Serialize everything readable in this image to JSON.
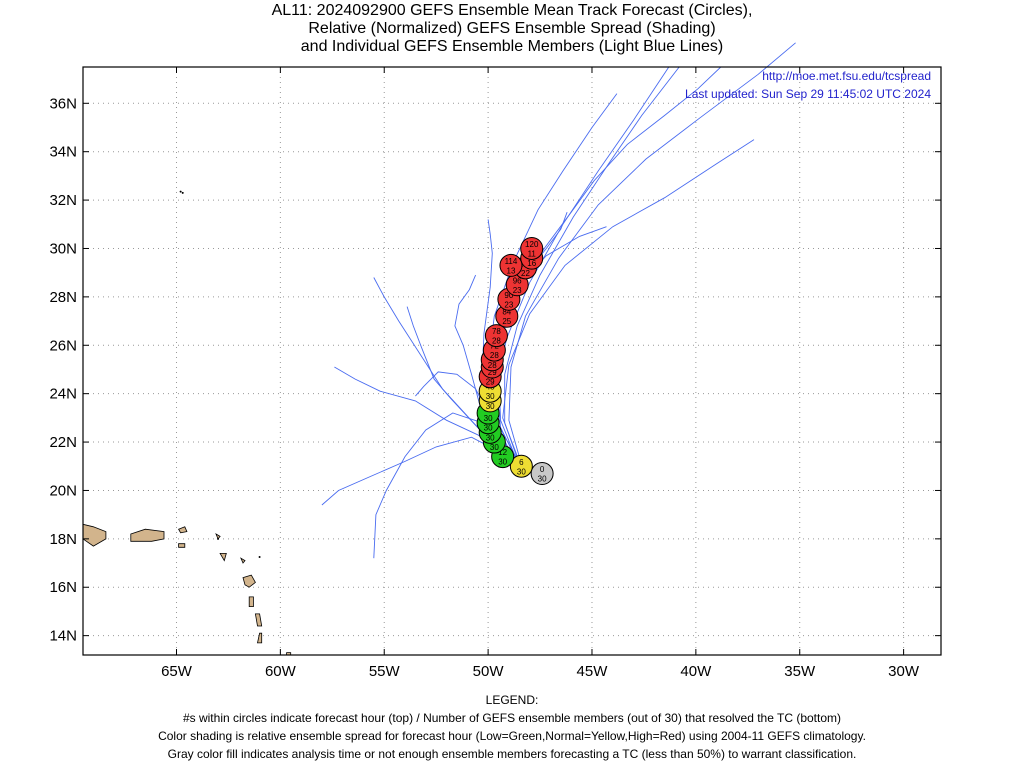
{
  "title": {
    "line1": "AL11: 2024092900 GEFS Ensemble Mean Track Forecast (Circles),",
    "line2": "Relative (Normalized) GEFS Ensemble Spread (Shading)",
    "line3": "and Individual GEFS Ensemble Members (Light Blue Lines)"
  },
  "credits": {
    "url": "http://moe.met.fsu.edu/tcspread",
    "updated": "Last updated: Sun Sep 29 11:45:02 UTC 2024"
  },
  "axes": {
    "lon_ticks": [
      "65W",
      "60W",
      "55W",
      "50W",
      "45W",
      "40W",
      "35W",
      "30W"
    ],
    "lat_ticks": [
      "14N",
      "16N",
      "18N",
      "20N",
      "22N",
      "24N",
      "26N",
      "28N",
      "30N",
      "32N",
      "34N",
      "36N"
    ]
  },
  "legend": {
    "heading": "LEGEND:",
    "line1": "#s within circles indicate forecast hour (top) / Number of GEFS ensemble members (out of 30) that resolved the TC (bottom)",
    "line2": "Color shading is relative ensemble spread for forecast hour (Low=Green,Normal=Yellow,High=Red) using 2004-11 GEFS climatology.",
    "line3": "Gray color fill indicates analysis time or not enough ensemble members forecasting a TC (less than 50%) to warrant classification."
  },
  "colors": {
    "gray": "#c8c8c8",
    "green": "#22cc22",
    "yellow": "#eedd33",
    "red": "#ee3333",
    "member_line": "#4a6cf0",
    "land": "#d2b48c",
    "url_text": "#2222cc"
  },
  "chart_data": {
    "type": "map-track",
    "lon_range": [
      -69.5,
      -28.2
    ],
    "lat_range": [
      13.2,
      37.5
    ],
    "grid": true,
    "mean_track": [
      {
        "hour": "0",
        "members": "30",
        "lon": -47.4,
        "lat": 20.7,
        "spread": "gray"
      },
      {
        "hour": "6",
        "members": "30",
        "lon": -48.4,
        "lat": 21.0,
        "spread": "yellow"
      },
      {
        "hour": "12",
        "members": "30",
        "lon": -49.3,
        "lat": 21.4,
        "spread": "green"
      },
      {
        "hour": "18",
        "members": "30",
        "lon": -49.7,
        "lat": 22.0,
        "spread": "green"
      },
      {
        "hour": "24",
        "members": "30",
        "lon": -49.9,
        "lat": 22.4,
        "spread": "green"
      },
      {
        "hour": "30",
        "members": "30",
        "lon": -50.0,
        "lat": 22.8,
        "spread": "green"
      },
      {
        "hour": "36",
        "members": "30",
        "lon": -50.0,
        "lat": 23.2,
        "spread": "green"
      },
      {
        "hour": "42",
        "members": "30",
        "lon": -49.9,
        "lat": 23.7,
        "spread": "yellow"
      },
      {
        "hour": "48",
        "members": "30",
        "lon": -49.9,
        "lat": 24.1,
        "spread": "yellow"
      },
      {
        "hour": "54",
        "members": "29",
        "lon": -49.9,
        "lat": 24.7,
        "spread": "red"
      },
      {
        "hour": "60",
        "members": "29",
        "lon": -49.8,
        "lat": 25.1,
        "spread": "red"
      },
      {
        "hour": "66",
        "members": "28",
        "lon": -49.8,
        "lat": 25.4,
        "spread": "red"
      },
      {
        "hour": "72",
        "members": "28",
        "lon": -49.7,
        "lat": 25.8,
        "spread": "red"
      },
      {
        "hour": "78",
        "members": "28",
        "lon": -49.6,
        "lat": 26.4,
        "spread": "red"
      },
      {
        "hour": "84",
        "members": "25",
        "lon": -49.1,
        "lat": 27.2,
        "spread": "red"
      },
      {
        "hour": "90",
        "members": "23",
        "lon": -49.0,
        "lat": 27.9,
        "spread": "red"
      },
      {
        "hour": "96",
        "members": "23",
        "lon": -48.6,
        "lat": 28.5,
        "spread": "red"
      },
      {
        "hour": "102",
        "members": "22",
        "lon": -48.2,
        "lat": 29.2,
        "spread": "red"
      },
      {
        "hour": "108",
        "members": "16",
        "lon": -47.9,
        "lat": 29.6,
        "spread": "red"
      },
      {
        "hour": "114",
        "members": "13",
        "lon": -48.9,
        "lat": 29.3,
        "spread": "red"
      },
      {
        "hour": "120",
        "members": "11",
        "lon": -47.9,
        "lat": 30.0,
        "spread": "red"
      }
    ],
    "member_tracks": [
      [
        [
          -47.4,
          20.7
        ],
        [
          -48.8,
          21.3
        ],
        [
          -50.5,
          22.3
        ],
        [
          -52.0,
          22.9
        ],
        [
          -53.5,
          23.7
        ],
        [
          -55.2,
          24.1
        ],
        [
          -56.4,
          24.6
        ],
        [
          -57.4,
          25.1
        ]
      ],
      [
        [
          -47.4,
          20.7
        ],
        [
          -49.0,
          21.4
        ],
        [
          -50.8,
          22.2
        ],
        [
          -52.5,
          21.8
        ],
        [
          -54.0,
          21.2
        ],
        [
          -55.6,
          20.6
        ],
        [
          -57.2,
          20.0
        ],
        [
          -58.0,
          19.4
        ]
      ],
      [
        [
          -47.4,
          20.7
        ],
        [
          -49.2,
          21.5
        ],
        [
          -50.5,
          22.6
        ],
        [
          -51.8,
          23.8
        ],
        [
          -52.6,
          24.6
        ],
        [
          -53.2,
          25.9
        ],
        [
          -53.6,
          26.8
        ],
        [
          -53.9,
          27.6
        ]
      ],
      [
        [
          -47.4,
          20.7
        ],
        [
          -48.9,
          21.5
        ],
        [
          -50.3,
          22.8
        ],
        [
          -51.7,
          23.2
        ],
        [
          -53.0,
          22.5
        ],
        [
          -54.0,
          21.4
        ],
        [
          -54.9,
          20.0
        ],
        [
          -55.4,
          19.0
        ],
        [
          -55.5,
          17.2
        ]
      ],
      [
        [
          -47.4,
          20.7
        ],
        [
          -48.9,
          21.4
        ],
        [
          -50.6,
          22.7
        ],
        [
          -52.2,
          24.2
        ],
        [
          -53.4,
          25.8
        ],
        [
          -54.3,
          27.0
        ],
        [
          -55.0,
          28.0
        ],
        [
          -55.5,
          28.8
        ]
      ],
      [
        [
          -47.4,
          20.7
        ],
        [
          -49.0,
          21.4
        ],
        [
          -50.2,
          22.9
        ],
        [
          -50.8,
          24.8
        ],
        [
          -51.2,
          26.0
        ],
        [
          -51.6,
          26.8
        ],
        [
          -51.4,
          27.7
        ],
        [
          -50.9,
          28.3
        ],
        [
          -50.6,
          28.9
        ]
      ],
      [
        [
          -47.4,
          20.7
        ],
        [
          -48.8,
          21.3
        ],
        [
          -49.9,
          22.7
        ],
        [
          -50.3,
          24.6
        ],
        [
          -50.2,
          26.5
        ],
        [
          -49.9,
          28.4
        ],
        [
          -49.8,
          29.8
        ],
        [
          -49.9,
          30.6
        ],
        [
          -50.0,
          31.2
        ]
      ],
      [
        [
          -47.4,
          20.7
        ],
        [
          -48.8,
          21.4
        ],
        [
          -49.8,
          22.6
        ],
        [
          -49.9,
          24.3
        ],
        [
          -49.4,
          26.2
        ],
        [
          -48.5,
          28.3
        ],
        [
          -47.3,
          30.0
        ],
        [
          -46.0,
          31.5
        ],
        [
          -44.9,
          32.8
        ],
        [
          -43.3,
          34.3
        ],
        [
          -41.5,
          35.5
        ],
        [
          -39.9,
          36.6
        ],
        [
          -38.8,
          37.5
        ]
      ],
      [
        [
          -47.4,
          20.7
        ],
        [
          -48.6,
          21.2
        ],
        [
          -49.4,
          22.6
        ],
        [
          -49.6,
          24.4
        ],
        [
          -49.1,
          26.3
        ],
        [
          -48.0,
          28.6
        ],
        [
          -46.4,
          31.0
        ],
        [
          -44.7,
          33.2
        ],
        [
          -43.0,
          35.3
        ],
        [
          -41.3,
          37.5
        ]
      ],
      [
        [
          -47.4,
          20.7
        ],
        [
          -48.5,
          21.1
        ],
        [
          -49.2,
          22.8
        ],
        [
          -49.2,
          24.8
        ],
        [
          -48.6,
          26.8
        ],
        [
          -47.5,
          28.9
        ],
        [
          -45.9,
          31.3
        ],
        [
          -44.2,
          33.5
        ],
        [
          -42.6,
          35.5
        ],
        [
          -40.8,
          37.5
        ]
      ],
      [
        [
          -47.4,
          20.7
        ],
        [
          -48.4,
          21.1
        ],
        [
          -49.0,
          22.9
        ],
        [
          -48.9,
          25.1
        ],
        [
          -48.2,
          27.2
        ],
        [
          -46.6,
          29.6
        ],
        [
          -44.7,
          31.8
        ],
        [
          -42.4,
          33.7
        ],
        [
          -39.8,
          35.4
        ],
        [
          -37.0,
          37.2
        ],
        [
          -35.2,
          38.5
        ]
      ],
      [
        [
          -47.4,
          20.7
        ],
        [
          -48.5,
          21.2
        ],
        [
          -49.3,
          23.0
        ],
        [
          -49.0,
          25.2
        ],
        [
          -48.0,
          27.3
        ],
        [
          -46.3,
          29.3
        ],
        [
          -44.0,
          30.9
        ],
        [
          -41.5,
          32.1
        ],
        [
          -39.0,
          33.5
        ],
        [
          -37.2,
          34.5
        ]
      ],
      [
        [
          -47.4,
          20.7
        ],
        [
          -48.6,
          21.2
        ],
        [
          -49.4,
          22.9
        ],
        [
          -49.5,
          25.0
        ],
        [
          -49.2,
          27.0
        ],
        [
          -48.4,
          28.6
        ],
        [
          -47.2,
          29.7
        ],
        [
          -45.6,
          30.5
        ],
        [
          -44.3,
          30.9
        ]
      ],
      [
        [
          -47.4,
          20.7
        ],
        [
          -48.7,
          21.2
        ],
        [
          -49.7,
          22.9
        ],
        [
          -50.0,
          25.1
        ],
        [
          -49.7,
          27.2
        ],
        [
          -48.8,
          29.4
        ],
        [
          -47.6,
          31.6
        ],
        [
          -46.4,
          33.2
        ],
        [
          -45.0,
          35.0
        ],
        [
          -43.8,
          36.4
        ]
      ],
      [
        [
          -47.4,
          20.7
        ],
        [
          -48.6,
          21.3
        ],
        [
          -49.5,
          22.7
        ],
        [
          -49.8,
          24.7
        ],
        [
          -49.5,
          26.6
        ],
        [
          -48.5,
          28.6
        ],
        [
          -47.2,
          30.0
        ],
        [
          -46.5,
          30.8
        ],
        [
          -46.2,
          31.5
        ]
      ],
      [
        [
          -47.4,
          20.7
        ],
        [
          -48.7,
          21.3
        ],
        [
          -49.8,
          22.8
        ],
        [
          -50.6,
          24.2
        ],
        [
          -51.5,
          24.8
        ],
        [
          -52.4,
          24.9
        ],
        [
          -53.1,
          24.3
        ],
        [
          -53.5,
          23.9
        ]
      ]
    ],
    "islands": [
      [
        [
          -69.5,
          18.6
        ],
        [
          -69.0,
          18.5
        ],
        [
          -68.4,
          18.3
        ],
        [
          -68.4,
          18.0
        ],
        [
          -69.0,
          17.7
        ],
        [
          -69.5,
          18.0
        ]
      ],
      [
        [
          -67.2,
          18.2
        ],
        [
          -66.5,
          18.4
        ],
        [
          -65.6,
          18.3
        ],
        [
          -65.6,
          18.0
        ],
        [
          -66.2,
          17.9
        ],
        [
          -67.2,
          17.9
        ]
      ],
      [
        [
          -64.9,
          18.4
        ],
        [
          -64.6,
          18.5
        ],
        [
          -64.5,
          18.3
        ],
        [
          -64.8,
          18.25
        ]
      ],
      [
        [
          -64.9,
          17.8
        ],
        [
          -64.6,
          17.8
        ],
        [
          -64.6,
          17.65
        ],
        [
          -64.9,
          17.65
        ]
      ],
      [
        [
          -63.1,
          18.2
        ],
        [
          -62.9,
          18.1
        ],
        [
          -63.0,
          18.0
        ]
      ],
      [
        [
          -62.9,
          17.4
        ],
        [
          -62.6,
          17.4
        ],
        [
          -62.7,
          17.1
        ]
      ],
      [
        [
          -61.9,
          17.2
        ],
        [
          -61.7,
          17.1
        ],
        [
          -61.8,
          17.0
        ]
      ],
      [
        [
          -61.8,
          16.4
        ],
        [
          -61.4,
          16.5
        ],
        [
          -61.2,
          16.2
        ],
        [
          -61.5,
          16.0
        ],
        [
          -61.7,
          16.1
        ]
      ],
      [
        [
          -61.5,
          15.6
        ],
        [
          -61.3,
          15.6
        ],
        [
          -61.3,
          15.2
        ],
        [
          -61.5,
          15.2
        ]
      ],
      [
        [
          -61.2,
          14.9
        ],
        [
          -61.0,
          14.9
        ],
        [
          -60.9,
          14.4
        ],
        [
          -61.1,
          14.4
        ]
      ],
      [
        [
          -61.0,
          14.1
        ],
        [
          -60.9,
          14.1
        ],
        [
          -60.9,
          13.7
        ],
        [
          -61.1,
          13.7
        ]
      ],
      [
        [
          -59.7,
          13.3
        ],
        [
          -59.5,
          13.3
        ],
        [
          -59.5,
          13.05
        ],
        [
          -59.7,
          13.05
        ]
      ]
    ],
    "dots": [
      [
        -64.8,
        32.35
      ],
      [
        -64.7,
        32.3
      ],
      [
        -61.0,
        17.25
      ],
      [
        -63.0,
        18.0
      ]
    ]
  }
}
